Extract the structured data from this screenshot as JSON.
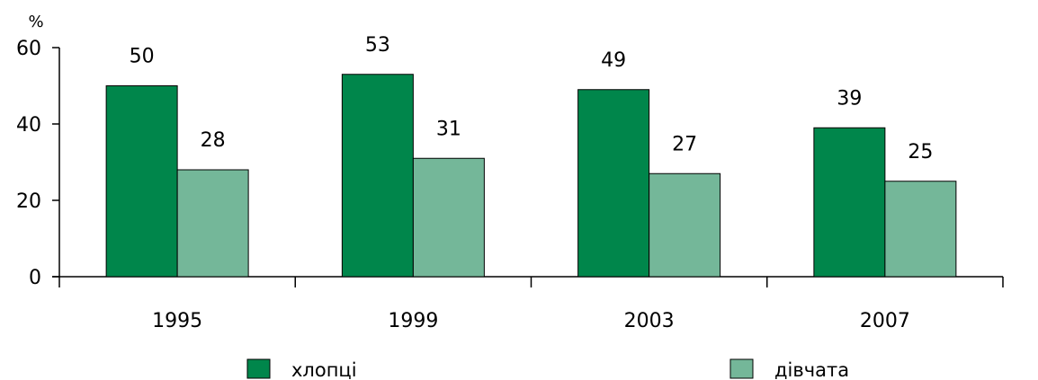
{
  "chart_data": {
    "type": "bar",
    "y_unit_label": "%",
    "categories": [
      "1995",
      "1999",
      "2003",
      "2007"
    ],
    "series": [
      {
        "name": "хлопці",
        "color": "#00864b",
        "values": [
          50,
          53,
          49,
          39
        ]
      },
      {
        "name": "дівчата",
        "color": "#74b799",
        "values": [
          28,
          31,
          27,
          25
        ]
      }
    ],
    "ylim": [
      0,
      60
    ],
    "yticks": [
      0,
      20,
      40,
      60
    ],
    "grid": false,
    "legend_position": "bottom",
    "data_labels": true
  }
}
